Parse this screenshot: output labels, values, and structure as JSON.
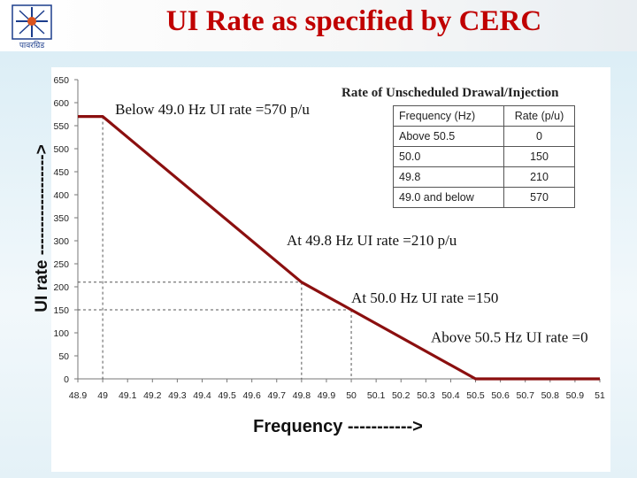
{
  "slide": {
    "title": "UI Rate as specified by CERC",
    "logo_text": "पावरग्रिड"
  },
  "chart_data": {
    "type": "line",
    "xlabel": "Frequency ----------->",
    "ylabel": "UI rate ------------------>",
    "xlim": [
      48.9,
      51.0
    ],
    "ylim": [
      0,
      650
    ],
    "x_ticks": [
      "48.9",
      "49",
      "49.1",
      "49.2",
      "49.3",
      "49.4",
      "49.5",
      "49.6",
      "49.7",
      "49.8",
      "49.9",
      "50",
      "50.1",
      "50.2",
      "50.3",
      "50.4",
      "50.5",
      "50.6",
      "50.7",
      "50.8",
      "50.9",
      "51"
    ],
    "y_ticks": [
      "0",
      "50",
      "100",
      "150",
      "200",
      "250",
      "300",
      "350",
      "400",
      "450",
      "500",
      "550",
      "600",
      "650"
    ],
    "series": [
      {
        "name": "UI rate",
        "x": [
          48.9,
          49.0,
          49.8,
          50.0,
          50.5,
          51.0
        ],
        "y": [
          570,
          570,
          210,
          150,
          0,
          0
        ]
      }
    ],
    "reference_lines": [
      {
        "x": 49.0,
        "y": 570
      },
      {
        "x": 49.8,
        "y": 210
      },
      {
        "x": 50.0,
        "y": 150
      }
    ],
    "annotations": [
      {
        "text": "Below 49.0 Hz UI rate =570 p/u",
        "x": 49.05,
        "y": 575
      },
      {
        "text": "At 49.8 Hz UI rate =210 p/u",
        "x": 49.74,
        "y": 290
      },
      {
        "text": "At 50.0 Hz UI rate =150",
        "x": 50.0,
        "y": 165
      },
      {
        "text": "Above 50.5 Hz UI rate =0",
        "x": 50.32,
        "y": 80
      }
    ],
    "table": {
      "title": "Rate of Unscheduled Drawal/Injection",
      "headers": [
        "Frequency (Hz)",
        "Rate (p/u)"
      ],
      "rows": [
        [
          "Above 50.5",
          "0"
        ],
        [
          "50.0",
          "150"
        ],
        [
          "49.8",
          "210"
        ],
        [
          "49.0 and below",
          "570"
        ]
      ]
    }
  }
}
